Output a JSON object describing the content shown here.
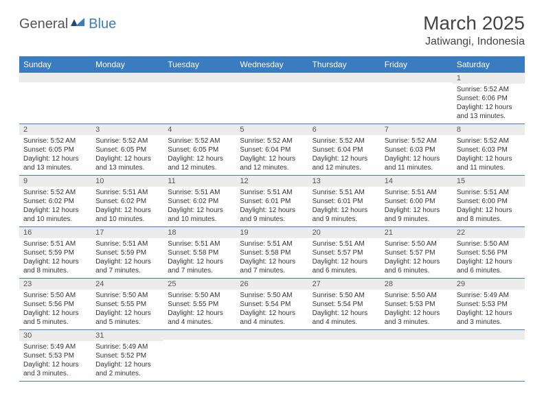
{
  "logo": {
    "part1": "General",
    "part2": "Blue"
  },
  "title": "March 2025",
  "location": "Jatiwangi, Indonesia",
  "colors": {
    "header_bg": "#3b7bbf",
    "header_text": "#ffffff",
    "daynum_bg": "#ececec",
    "row_border": "#3b7bbf",
    "logo_accent": "#3b7bbf",
    "logo_dark": "#1a4a7a"
  },
  "dow": [
    "Sunday",
    "Monday",
    "Tuesday",
    "Wednesday",
    "Thursday",
    "Friday",
    "Saturday"
  ],
  "weeks": [
    [
      null,
      null,
      null,
      null,
      null,
      null,
      {
        "n": "1",
        "sr": "Sunrise: 5:52 AM",
        "ss": "Sunset: 6:06 PM",
        "d1": "Daylight: 12 hours",
        "d2": "and 13 minutes."
      }
    ],
    [
      {
        "n": "2",
        "sr": "Sunrise: 5:52 AM",
        "ss": "Sunset: 6:05 PM",
        "d1": "Daylight: 12 hours",
        "d2": "and 13 minutes."
      },
      {
        "n": "3",
        "sr": "Sunrise: 5:52 AM",
        "ss": "Sunset: 6:05 PM",
        "d1": "Daylight: 12 hours",
        "d2": "and 13 minutes."
      },
      {
        "n": "4",
        "sr": "Sunrise: 5:52 AM",
        "ss": "Sunset: 6:05 PM",
        "d1": "Daylight: 12 hours",
        "d2": "and 12 minutes."
      },
      {
        "n": "5",
        "sr": "Sunrise: 5:52 AM",
        "ss": "Sunset: 6:04 PM",
        "d1": "Daylight: 12 hours",
        "d2": "and 12 minutes."
      },
      {
        "n": "6",
        "sr": "Sunrise: 5:52 AM",
        "ss": "Sunset: 6:04 PM",
        "d1": "Daylight: 12 hours",
        "d2": "and 12 minutes."
      },
      {
        "n": "7",
        "sr": "Sunrise: 5:52 AM",
        "ss": "Sunset: 6:03 PM",
        "d1": "Daylight: 12 hours",
        "d2": "and 11 minutes."
      },
      {
        "n": "8",
        "sr": "Sunrise: 5:52 AM",
        "ss": "Sunset: 6:03 PM",
        "d1": "Daylight: 12 hours",
        "d2": "and 11 minutes."
      }
    ],
    [
      {
        "n": "9",
        "sr": "Sunrise: 5:52 AM",
        "ss": "Sunset: 6:02 PM",
        "d1": "Daylight: 12 hours",
        "d2": "and 10 minutes."
      },
      {
        "n": "10",
        "sr": "Sunrise: 5:51 AM",
        "ss": "Sunset: 6:02 PM",
        "d1": "Daylight: 12 hours",
        "d2": "and 10 minutes."
      },
      {
        "n": "11",
        "sr": "Sunrise: 5:51 AM",
        "ss": "Sunset: 6:02 PM",
        "d1": "Daylight: 12 hours",
        "d2": "and 10 minutes."
      },
      {
        "n": "12",
        "sr": "Sunrise: 5:51 AM",
        "ss": "Sunset: 6:01 PM",
        "d1": "Daylight: 12 hours",
        "d2": "and 9 minutes."
      },
      {
        "n": "13",
        "sr": "Sunrise: 5:51 AM",
        "ss": "Sunset: 6:01 PM",
        "d1": "Daylight: 12 hours",
        "d2": "and 9 minutes."
      },
      {
        "n": "14",
        "sr": "Sunrise: 5:51 AM",
        "ss": "Sunset: 6:00 PM",
        "d1": "Daylight: 12 hours",
        "d2": "and 9 minutes."
      },
      {
        "n": "15",
        "sr": "Sunrise: 5:51 AM",
        "ss": "Sunset: 6:00 PM",
        "d1": "Daylight: 12 hours",
        "d2": "and 8 minutes."
      }
    ],
    [
      {
        "n": "16",
        "sr": "Sunrise: 5:51 AM",
        "ss": "Sunset: 5:59 PM",
        "d1": "Daylight: 12 hours",
        "d2": "and 8 minutes."
      },
      {
        "n": "17",
        "sr": "Sunrise: 5:51 AM",
        "ss": "Sunset: 5:59 PM",
        "d1": "Daylight: 12 hours",
        "d2": "and 7 minutes."
      },
      {
        "n": "18",
        "sr": "Sunrise: 5:51 AM",
        "ss": "Sunset: 5:58 PM",
        "d1": "Daylight: 12 hours",
        "d2": "and 7 minutes."
      },
      {
        "n": "19",
        "sr": "Sunrise: 5:51 AM",
        "ss": "Sunset: 5:58 PM",
        "d1": "Daylight: 12 hours",
        "d2": "and 7 minutes."
      },
      {
        "n": "20",
        "sr": "Sunrise: 5:51 AM",
        "ss": "Sunset: 5:57 PM",
        "d1": "Daylight: 12 hours",
        "d2": "and 6 minutes."
      },
      {
        "n": "21",
        "sr": "Sunrise: 5:50 AM",
        "ss": "Sunset: 5:57 PM",
        "d1": "Daylight: 12 hours",
        "d2": "and 6 minutes."
      },
      {
        "n": "22",
        "sr": "Sunrise: 5:50 AM",
        "ss": "Sunset: 5:56 PM",
        "d1": "Daylight: 12 hours",
        "d2": "and 6 minutes."
      }
    ],
    [
      {
        "n": "23",
        "sr": "Sunrise: 5:50 AM",
        "ss": "Sunset: 5:56 PM",
        "d1": "Daylight: 12 hours",
        "d2": "and 5 minutes."
      },
      {
        "n": "24",
        "sr": "Sunrise: 5:50 AM",
        "ss": "Sunset: 5:55 PM",
        "d1": "Daylight: 12 hours",
        "d2": "and 5 minutes."
      },
      {
        "n": "25",
        "sr": "Sunrise: 5:50 AM",
        "ss": "Sunset: 5:55 PM",
        "d1": "Daylight: 12 hours",
        "d2": "and 4 minutes."
      },
      {
        "n": "26",
        "sr": "Sunrise: 5:50 AM",
        "ss": "Sunset: 5:54 PM",
        "d1": "Daylight: 12 hours",
        "d2": "and 4 minutes."
      },
      {
        "n": "27",
        "sr": "Sunrise: 5:50 AM",
        "ss": "Sunset: 5:54 PM",
        "d1": "Daylight: 12 hours",
        "d2": "and 4 minutes."
      },
      {
        "n": "28",
        "sr": "Sunrise: 5:50 AM",
        "ss": "Sunset: 5:53 PM",
        "d1": "Daylight: 12 hours",
        "d2": "and 3 minutes."
      },
      {
        "n": "29",
        "sr": "Sunrise: 5:49 AM",
        "ss": "Sunset: 5:53 PM",
        "d1": "Daylight: 12 hours",
        "d2": "and 3 minutes."
      }
    ],
    [
      {
        "n": "30",
        "sr": "Sunrise: 5:49 AM",
        "ss": "Sunset: 5:53 PM",
        "d1": "Daylight: 12 hours",
        "d2": "and 3 minutes."
      },
      {
        "n": "31",
        "sr": "Sunrise: 5:49 AM",
        "ss": "Sunset: 5:52 PM",
        "d1": "Daylight: 12 hours",
        "d2": "and 2 minutes."
      },
      null,
      null,
      null,
      null,
      null
    ]
  ]
}
